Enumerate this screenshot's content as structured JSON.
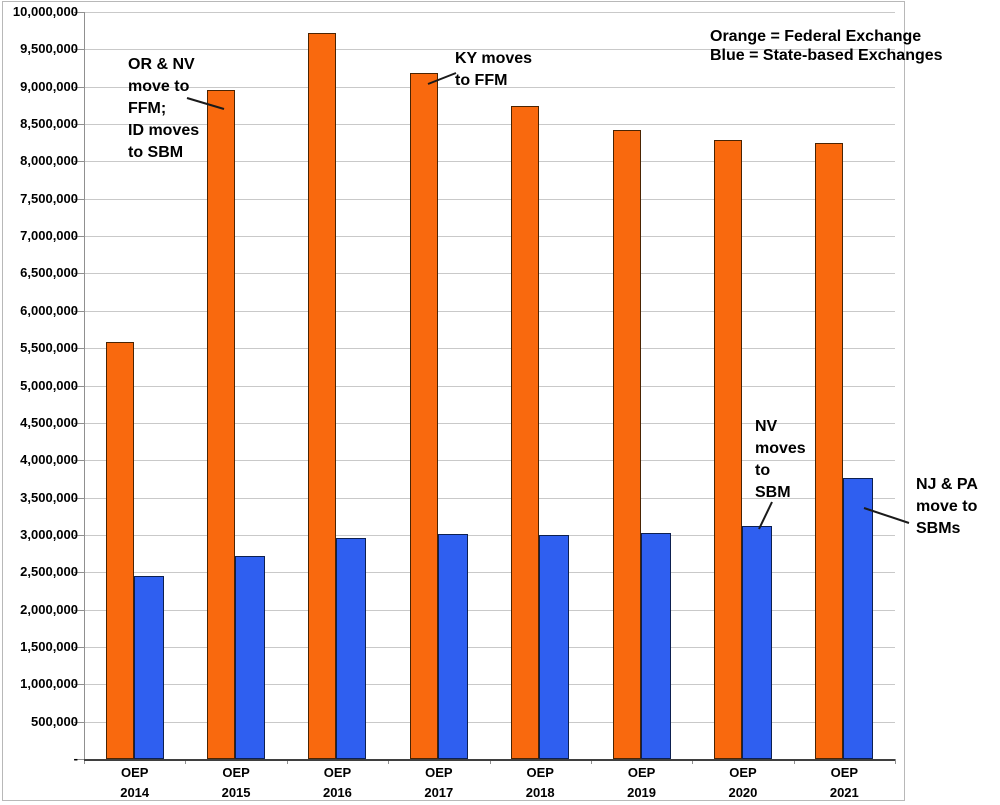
{
  "chart_data": {
    "type": "bar",
    "title": "",
    "categories": [
      [
        "OEP",
        "2014"
      ],
      [
        "OEP",
        "2015"
      ],
      [
        "OEP",
        "2016"
      ],
      [
        "OEP",
        "2017"
      ],
      [
        "OEP",
        "2018"
      ],
      [
        "OEP",
        "2019"
      ],
      [
        "OEP",
        "2020"
      ],
      [
        "OEP",
        "2021"
      ]
    ],
    "series": [
      {
        "name": "Federal Exchange",
        "color": "#F9690E",
        "border_color": "#4a2403",
        "values": [
          5580000,
          8950000,
          9720000,
          9190000,
          8740000,
          8420000,
          8280000,
          8250000
        ]
      },
      {
        "name": "State-based Exchanges",
        "color": "#2F5FF0",
        "border_color": "#0d2050",
        "values": [
          2450000,
          2720000,
          2960000,
          3010000,
          3000000,
          3030000,
          3120000,
          3760000
        ]
      }
    ],
    "ylim": [
      0,
      10000000
    ],
    "ytick_interval": 500000,
    "ytick_labels_bottom_to_top": [
      "-",
      "500,000",
      "1,000,000",
      "1,500,000",
      "2,000,000",
      "2,500,000",
      "3,000,000",
      "3,500,000",
      "4,000,000",
      "4,500,000",
      "5,000,000",
      "5,500,000",
      "6,000,000",
      "6,500,000",
      "7,000,000",
      "7,500,000",
      "8,000,000",
      "8,500,000",
      "9,000,000",
      "9,500,000",
      "10,000,000"
    ],
    "grid": true,
    "legend_position": "top-right-text"
  },
  "legend": {
    "line1": "Orange = Federal Exchange",
    "line2": "Blue = State-based Exchanges"
  },
  "annotations": {
    "or_nv": {
      "lines": [
        "OR & NV",
        "move to",
        "FFM;",
        "ID moves",
        "to SBM"
      ]
    },
    "ky": {
      "lines": [
        "KY moves",
        "to FFM"
      ]
    },
    "nv": {
      "lines": [
        "NV",
        "moves",
        "to",
        "SBM"
      ]
    },
    "njpa": {
      "lines": [
        "NJ & PA",
        "move to",
        "SBMs"
      ]
    }
  },
  "colors": {
    "federal_orange": "#F9690E",
    "state_blue": "#2F5FF0",
    "gridline": "#C9C9C9"
  }
}
